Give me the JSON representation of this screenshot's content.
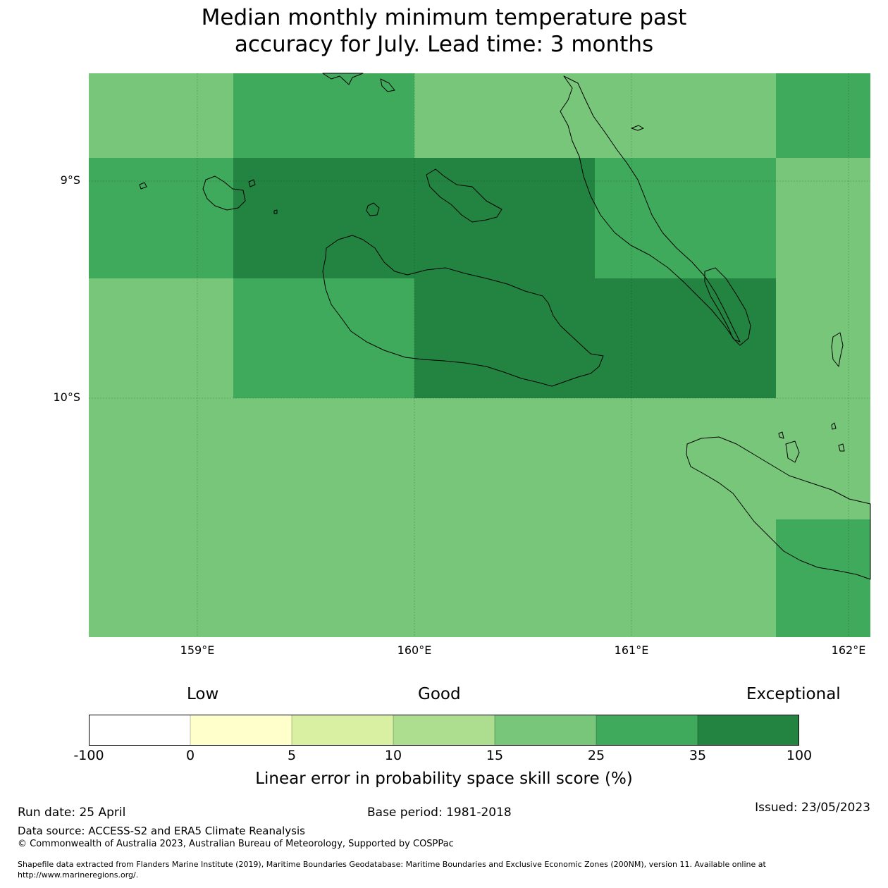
{
  "title_lines": [
    "Median monthly minimum temperature past",
    "accuracy for July. Lead time: 3 months"
  ],
  "map": {
    "lat_labels": [
      "9°S",
      "10°S"
    ],
    "lon_labels": [
      "159°E",
      "160°E",
      "161°E",
      "162°E"
    ],
    "colors": {
      "c15_25": "#78c67a",
      "c25_35": "#40aa5c",
      "c35_100": "#238441",
      "coastline": "#000000"
    }
  },
  "colorbar": {
    "headers": {
      "low": "Low",
      "good": "Good",
      "exceptional": "Exceptional"
    },
    "ticks": [
      "-100",
      "0",
      "5",
      "10",
      "15",
      "25",
      "35",
      "100"
    ],
    "colors": [
      "#ffffff",
      "#ffffcc",
      "#d9f0a3",
      "#addd8e",
      "#78c67a",
      "#40aa5c",
      "#238441"
    ],
    "label": "Linear error in probability space skill score (%)"
  },
  "footer": {
    "run_date": "Run date: 25 April",
    "base_period": "Base period: 1981-2018",
    "issued": "Issued: 23/05/2023",
    "data_source": "Data source: ACCESS-S2 and ERA5 Climate Reanalysis",
    "copyright": "© Commonwealth of Australia 2023, Australian Bureau of Meteorology, Supported by COSPPac",
    "shapefile_line1": "Shapefile data extracted from Flanders Marine Institute (2019), Maritime Boundaries Geodatabase: Maritime Boundaries and Exclusive Economic Zones (200NM), version 11. Available online at",
    "shapefile_line2": "http://www.marineregions.org/."
  }
}
